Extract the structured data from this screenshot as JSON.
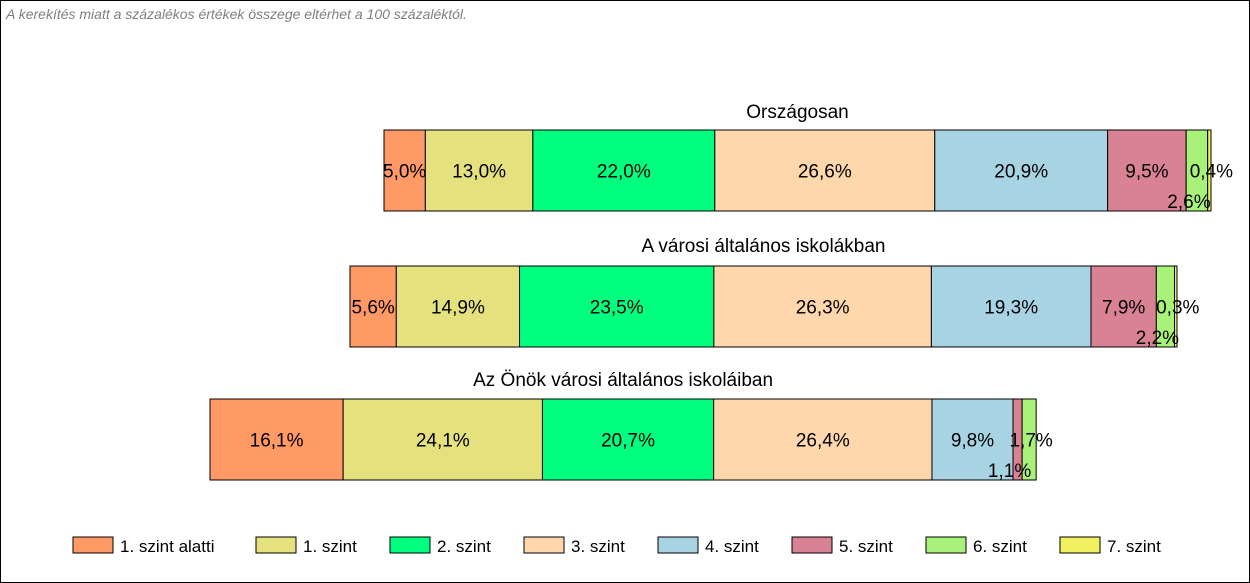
{
  "note": "A kerekítés miatt a  százalékos értékek összege eltérhet a 100 százaléktól.",
  "chart_data": {
    "type": "bar",
    "orientation": "horizontal",
    "stacked": true,
    "unit": "%",
    "grid": false,
    "legend_position": "bottom",
    "categories": [
      "Országosan",
      "A városi általános iskolákban",
      "Az Önök városi általános iskoláiban"
    ],
    "series": [
      {
        "name": "1. szint alatti",
        "color": "#ff9966",
        "values": [
          5.0,
          5.6,
          16.1
        ],
        "labels": [
          "5,0%",
          "5,6%",
          "16,1%"
        ]
      },
      {
        "name": "1. szint",
        "color": "#e6e17f",
        "values": [
          13.0,
          14.9,
          24.1
        ],
        "labels": [
          "13,0%",
          "14,9%",
          "24,1%"
        ]
      },
      {
        "name": "2. szint",
        "color": "#00ff7f",
        "values": [
          22.0,
          23.5,
          20.7
        ],
        "labels": [
          "22,0%",
          "23,5%",
          "20,7%"
        ]
      },
      {
        "name": "3. szint",
        "color": "#ffd7ad",
        "values": [
          26.6,
          26.3,
          26.4
        ],
        "labels": [
          "26,6%",
          "26,3%",
          "26,4%"
        ]
      },
      {
        "name": "4. szint",
        "color": "#a8d3e3",
        "values": [
          20.9,
          19.3,
          9.8
        ],
        "labels": [
          "20,9%",
          "19,3%",
          "9,8%"
        ]
      },
      {
        "name": "5. szint",
        "color": "#d98294",
        "values": [
          9.5,
          7.9,
          1.1
        ],
        "labels": [
          "9,5%",
          "7,9%",
          "1,1%"
        ]
      },
      {
        "name": "6. szint",
        "color": "#a8f279",
        "values": [
          2.6,
          2.2,
          1.7
        ],
        "labels": [
          "2,6%",
          "2,2%",
          "1,7%"
        ]
      },
      {
        "name": "7. szint",
        "color": "#f0f060",
        "values": [
          0.4,
          0.3,
          0.0
        ],
        "labels": [
          "0,4%",
          "0,3%",
          ""
        ]
      }
    ]
  }
}
